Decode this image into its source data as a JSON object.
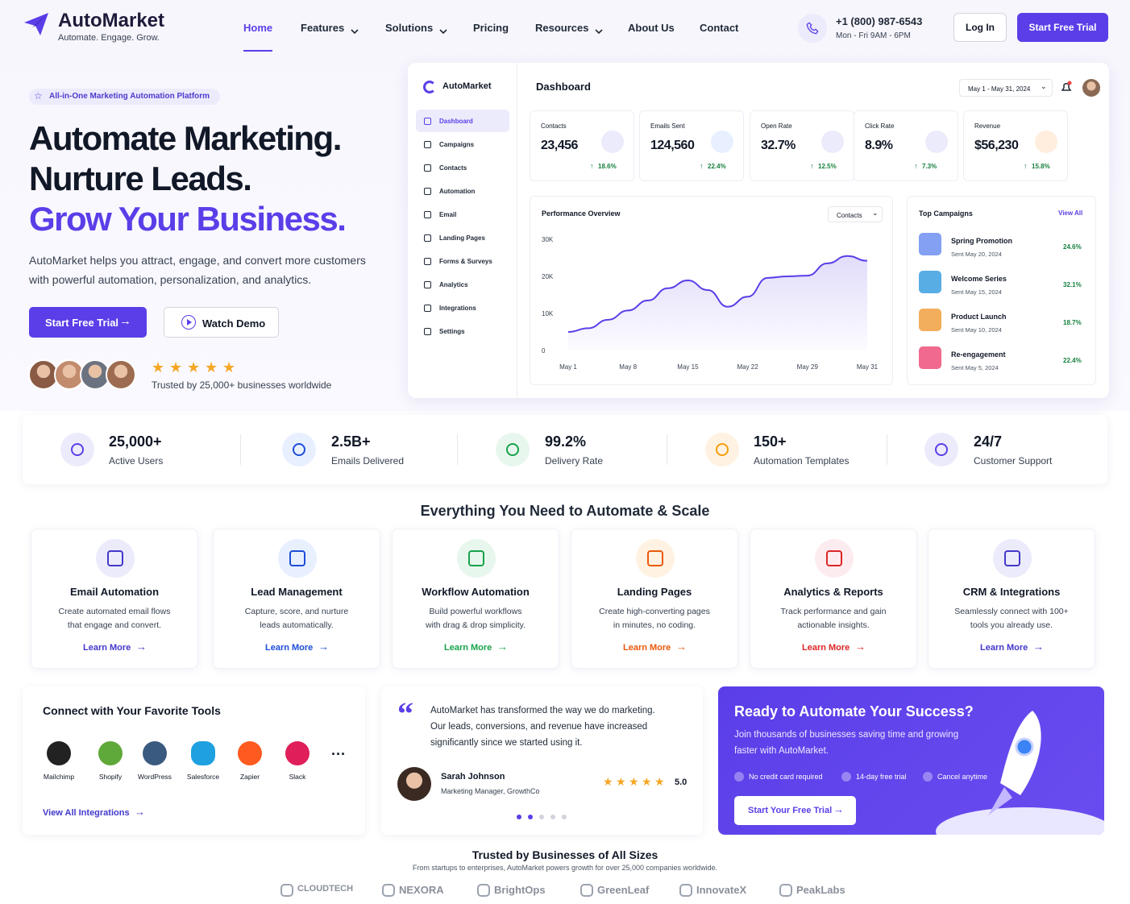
{
  "nav": {
    "brand": "AutoMarket",
    "tagline": "Automate. Engage. Grow.",
    "links": [
      "Home",
      "Features",
      "Solutions",
      "Pricing",
      "Resources",
      "About Us",
      "Contact"
    ],
    "phone": "+1 (800) 987-6543",
    "hours": "Mon - Fri 9AM - 6PM",
    "login": "Log In",
    "cta": "Start Free Trial"
  },
  "hero": {
    "badge": "All-in-One Marketing Automation Platform",
    "title_lines": [
      "Automate Marketing.",
      "Nurture Leads.",
      "Grow Your Business."
    ],
    "description": "AutoMarket helps you attract, engage, and convert more customers with powerful automation, personalization, and analytics.",
    "primary": "Start Free Trial",
    "secondary": "Watch Demo",
    "trust": "Trusted by 25,000+ businesses worldwide"
  },
  "dashboard": {
    "brand": "AutoMarket",
    "menu": [
      "Dashboard",
      "Campaigns",
      "Contacts",
      "Automation",
      "Email",
      "Landing Pages",
      "Forms & Surveys",
      "Analytics",
      "Integrations",
      "Settings"
    ],
    "title": "Dashboard",
    "date_range": "May 1 - May 31, 2024",
    "kpis": [
      {
        "label": "Contacts",
        "value": "23,456",
        "change": "18.6%"
      },
      {
        "label": "Emails Sent",
        "value": "124,560",
        "change": "22.4%"
      },
      {
        "label": "Open Rate",
        "value": "32.7%",
        "change": "12.5%"
      },
      {
        "label": "Click Rate",
        "value": "8.9%",
        "change": "7.3%"
      },
      {
        "label": "Revenue",
        "value": "$56,230",
        "change": "15.8%"
      }
    ],
    "campaigns_title": "Top Campaigns",
    "view_all": "View All",
    "campaigns": [
      {
        "name": "Spring Promotion",
        "date": "Sent May 20, 2024",
        "rate": "24.6%"
      },
      {
        "name": "Welcome Series",
        "date": "Sent May 15, 2024",
        "rate": "32.1%"
      },
      {
        "name": "Product Launch",
        "date": "Sent May 10, 2024",
        "rate": "18.7%"
      },
      {
        "name": "Re-engagement",
        "date": "Sent May 5, 2024",
        "rate": "22.4%"
      }
    ]
  },
  "chart_data": {
    "type": "line",
    "title": "Performance Overview",
    "filter": "Contacts",
    "categories": [
      "May 1",
      null,
      null,
      "May 8",
      null,
      null,
      "May 15",
      null,
      null,
      "May 22",
      null,
      null,
      "May 29",
      null,
      null,
      "May 31"
    ],
    "series": [
      {
        "color": "#5b3ee8",
        "values": [
          5000,
          6000,
          8300,
          10800,
          13500,
          16800,
          18900,
          16300,
          11800,
          14500,
          19600,
          20000,
          20200,
          23500,
          25500,
          24200
        ]
      }
    ],
    "ylim": [
      0,
      30000
    ],
    "yticks": [
      0,
      {
        "value": 10000,
        "label": "10K"
      },
      {
        "value": 20000,
        "label": "20K"
      },
      {
        "value": 30000,
        "label": "30K"
      }
    ],
    "grid": false,
    "area": true
  },
  "stats": [
    {
      "value": "25,000+",
      "label": "Active Users"
    },
    {
      "value": "2.5B+",
      "label": "Emails Delivered"
    },
    {
      "value": "99.2%",
      "label": "Delivery Rate"
    },
    {
      "value": "150+",
      "label": "Automation Templates"
    },
    {
      "value": "24/7",
      "label": "Customer Support"
    }
  ],
  "features": {
    "title": "Everything You Need to Automate & Scale",
    "items": [
      {
        "title": "Email Automation",
        "description": [
          "Create automated email flows",
          "that engage and convert."
        ],
        "link": "Learn More"
      },
      {
        "title": "Lead Management",
        "description": [
          "Capture, score, and nurture",
          "leads automatically."
        ],
        "link": "Learn More"
      },
      {
        "title": "Workflow Automation",
        "description": [
          "Build powerful workflows",
          "with drag & drop simplicity."
        ],
        "link": "Learn More"
      },
      {
        "title": "Landing Pages",
        "description": [
          "Create high-converting pages",
          "in minutes, no coding."
        ],
        "link": "Learn More"
      },
      {
        "title": "Analytics & Reports",
        "description": [
          "Track performance and gain",
          "actionable insights."
        ],
        "link": "Learn More"
      },
      {
        "title": "CRM & Integrations",
        "description": [
          "Seamlessly connect with 100+",
          "tools you already use."
        ],
        "link": "Learn More"
      }
    ]
  },
  "integrations": {
    "title": "Connect with Your Favorite Tools",
    "tools": [
      "Mailchimp",
      "Shopify",
      "WordPress",
      "Salesforce",
      "Zapier",
      "Slack"
    ],
    "link": "View All Integrations"
  },
  "testimonial": {
    "quote": "AutoMarket has transformed the way we do marketing. Our leads, conversions, and revenue have increased significantly since we started using it.",
    "name": "Sarah Johnson",
    "role": "Marketing Manager, GrowthCo",
    "rating": "5.0"
  },
  "cta": {
    "title": "Ready to Automate Your Success?",
    "text": "Join thousands of businesses saving time and growing faster with AutoMarket.",
    "points": [
      "No credit card required",
      "14-day free trial",
      "Cancel anytime"
    ],
    "button": "Start Your Free Trial"
  },
  "trusted": {
    "title": "Trusted by Businesses of All Sizes",
    "subtitle": "From startups to enterprises, AutoMarket powers growth for over 25,000 companies worldwide.",
    "logos": [
      "CLOUDTECH",
      "NEXORA",
      "BrightOps",
      "GreenLeaf",
      "InnovateX",
      "PeakLabs"
    ]
  }
}
